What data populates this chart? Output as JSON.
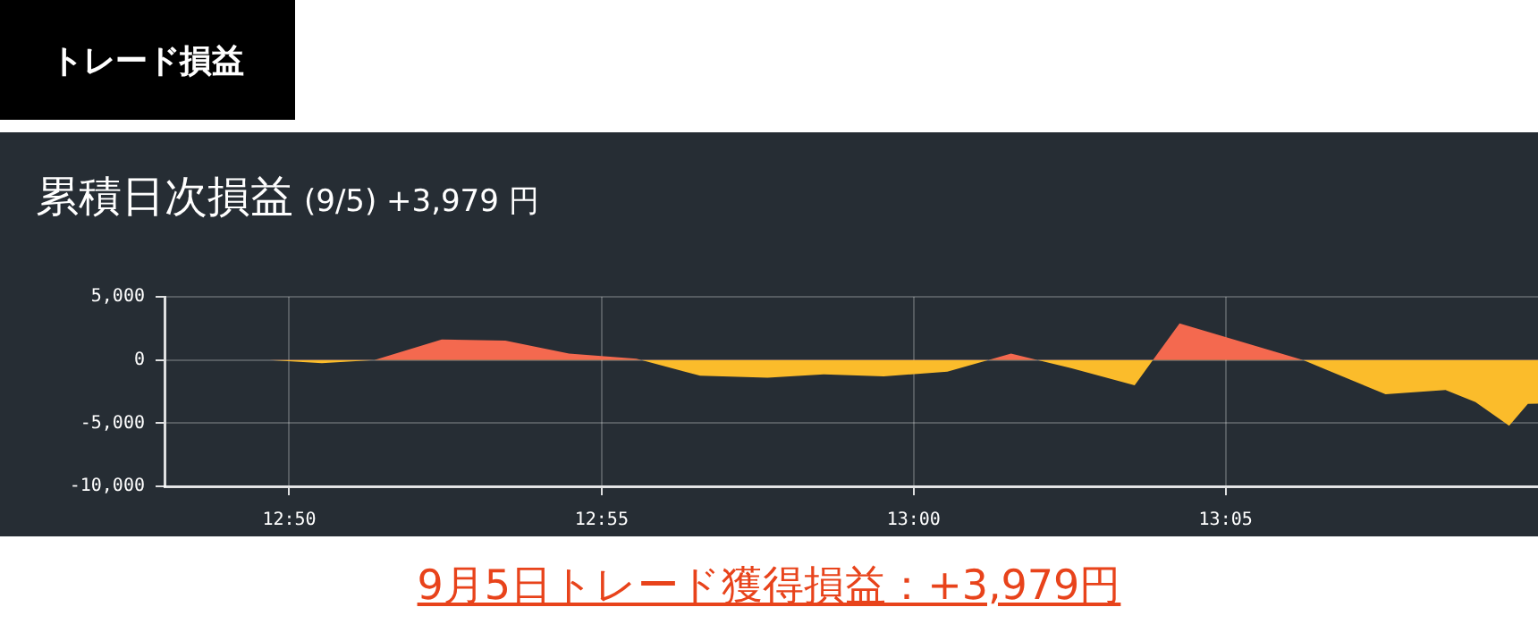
{
  "chart_data": {
    "type": "area",
    "title": "累積日次損益",
    "subtitle": "(9/5) +3,979 円",
    "annotations": [
      "トレード損益",
      "9月5日トレード獲得損益：+3,979円"
    ],
    "x": [
      12.8,
      12.828,
      12.842,
      12.856,
      12.874,
      12.891,
      12.908,
      12.926,
      12.943,
      12.961,
      12.976,
      12.992,
      13.009,
      13.026,
      13.042,
      13.059,
      13.071,
      13.104,
      13.11,
      13.126,
      13.142,
      13.15,
      13.159,
      13.164,
      13.1667
    ],
    "series": [
      {
        "values": [
          0,
          0,
          -250,
          0,
          1630,
          1530,
          500,
          100,
          -1250,
          -1400,
          -1130,
          -1300,
          -920,
          500,
          -640,
          -2000,
          2900,
          0,
          -750,
          -2720,
          -2380,
          -3330,
          -5210,
          -3470,
          -3450
        ],
        "colors": [
          "#fbbc2b",
          "#fbbc2b",
          "#fbbc2b",
          "#fbbc2b",
          "#f4694f",
          "#f4694f",
          "#f4694f",
          "#f4694f",
          "#fbbc2b",
          "#fbbc2b",
          "#fbbc2b",
          "#fbbc2b",
          "#fbbc2b",
          "#f4694f",
          "#fbbc2b",
          "#fbbc2b",
          "#f4694f",
          "#fbbc2b",
          "#fbbc2b",
          "#fbbc2b",
          "#fbbc2b",
          "#fbbc2b",
          "#fbbc2b",
          "#fbbc2b",
          "#fbbc2b"
        ]
      }
    ],
    "xlim": [
      12.8,
      13.1667
    ],
    "xticks": [
      {
        "value": 12.8333,
        "label": "12:50"
      },
      {
        "value": 12.9167,
        "label": "12:55"
      },
      {
        "value": 13,
        "label": "13:00"
      },
      {
        "value": 13.0833,
        "label": "13:05"
      }
    ],
    "ylim": [
      -10000,
      5000
    ],
    "yticks": [
      {
        "value": 5000,
        "label": "5,000"
      },
      {
        "value": 0,
        "label": "0"
      },
      {
        "value": -5000,
        "label": "-5,000"
      },
      {
        "value": -10000,
        "label": "-10,000"
      }
    ],
    "grid": true,
    "legend": false,
    "marker": "none"
  }
}
